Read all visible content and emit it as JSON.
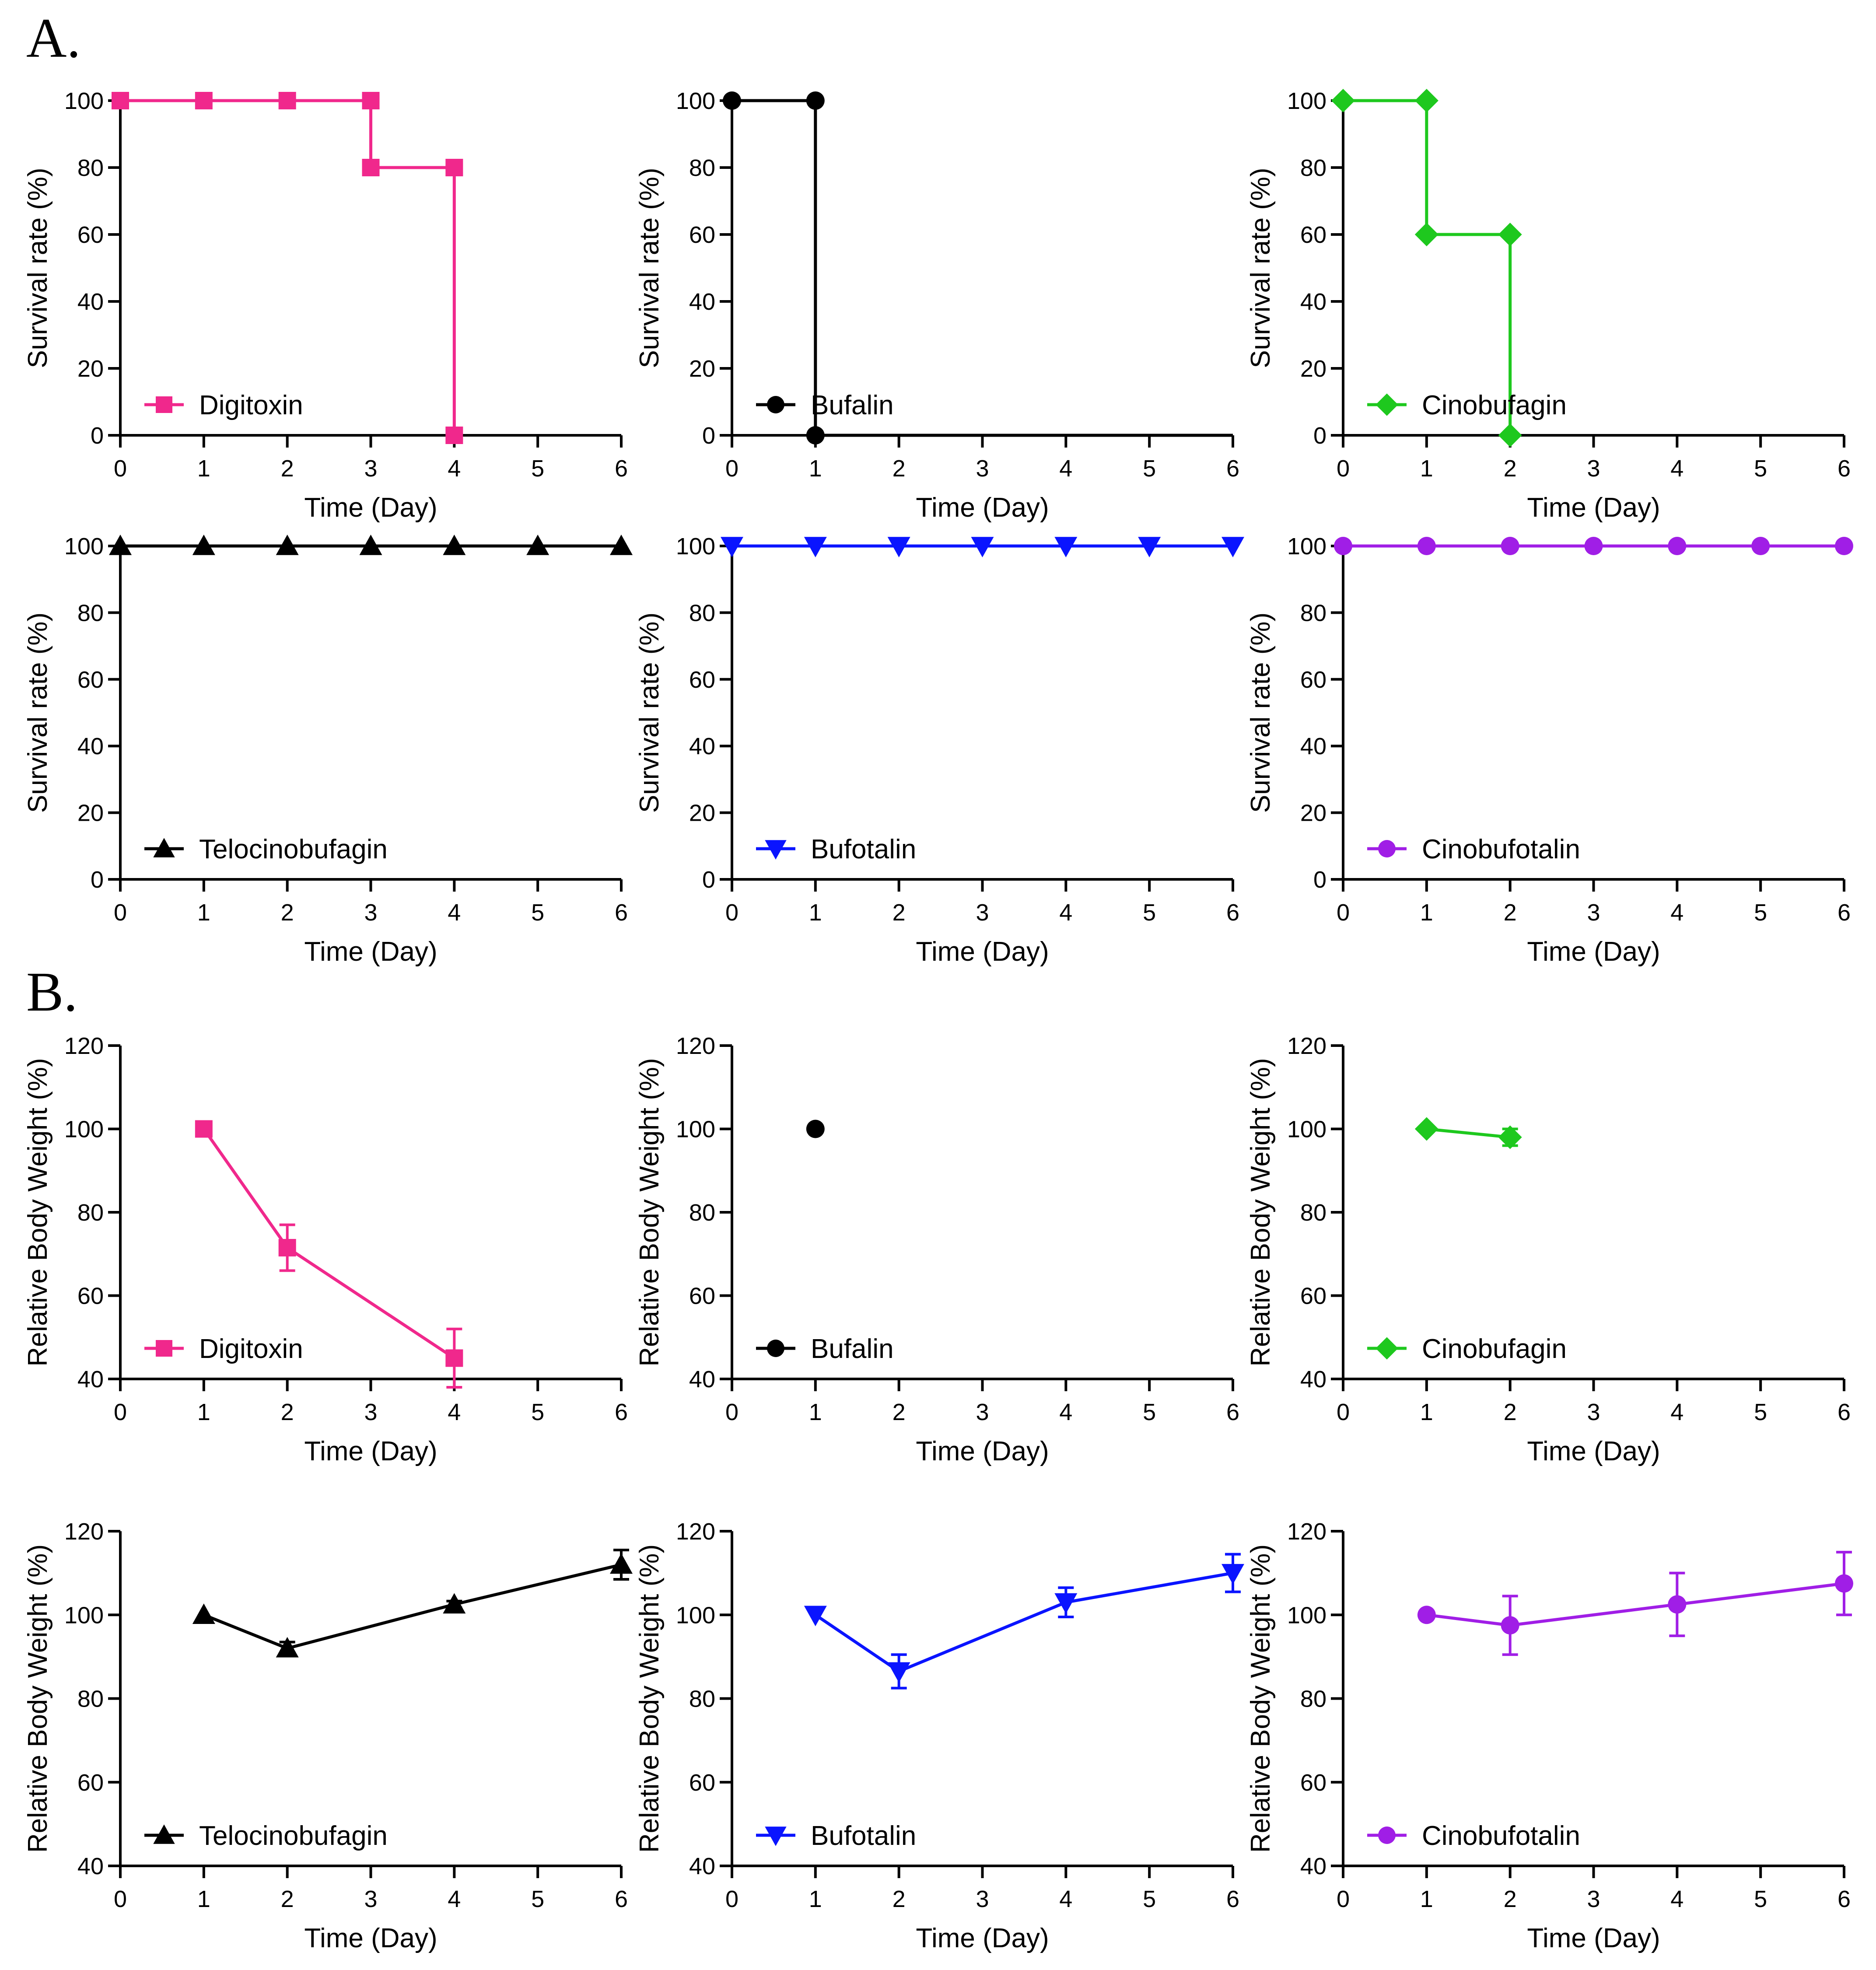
{
  "figure": {
    "panel_labels": [
      "A.",
      "B."
    ]
  },
  "colors": {
    "Digitoxin": "#f0288c",
    "Bufalin": "#000000",
    "Cinobufagin": "#1ec81e",
    "Telocinobufagin": "#000000",
    "Bufotalin": "#0a14ff",
    "Cinobufotalin": "#a01ee6"
  },
  "chart_data": [
    {
      "type": "line",
      "panel": "A",
      "name": "Digitoxin",
      "marker": "square",
      "step": true,
      "xlabel": "Time (Day)",
      "ylabel": "Survival rate (%)",
      "xlim": [
        0,
        6
      ],
      "ylim": [
        0,
        100
      ],
      "xticks": [
        0,
        1,
        2,
        3,
        4,
        5,
        6
      ],
      "yticks": [
        0,
        20,
        40,
        60,
        80,
        100
      ],
      "xticklabels": [
        "0",
        "1",
        "2",
        "3",
        "4",
        "5",
        "6"
      ],
      "yticklabels": [
        "0",
        "20",
        "40",
        "60",
        "80",
        "100"
      ],
      "x": [
        0,
        1,
        2,
        3,
        3,
        4,
        4
      ],
      "y": [
        100,
        100,
        100,
        100,
        80,
        80,
        0
      ]
    },
    {
      "type": "line",
      "panel": "A",
      "name": "Bufalin",
      "marker": "circle",
      "step": true,
      "xlabel": "Time (Day)",
      "ylabel": "Survival rate (%)",
      "xlim": [
        0,
        6
      ],
      "ylim": [
        0,
        100
      ],
      "xticks": [
        0,
        1,
        2,
        3,
        4,
        5,
        6
      ],
      "yticks": [
        0,
        20,
        40,
        60,
        80,
        100
      ],
      "xticklabels": [
        "0",
        "1",
        "2",
        "3",
        "4",
        "5",
        "6"
      ],
      "yticklabels": [
        "0",
        "20",
        "40",
        "60",
        "80",
        "100"
      ],
      "x": [
        0,
        1,
        1
      ],
      "y": [
        100,
        100,
        0
      ],
      "extend_to": 6
    },
    {
      "type": "line",
      "panel": "A",
      "name": "Cinobufagin",
      "marker": "diamond",
      "step": true,
      "xlabel": "Time (Day)",
      "ylabel": "Survival rate (%)",
      "xlim": [
        0,
        6
      ],
      "ylim": [
        0,
        100
      ],
      "xticks": [
        0,
        1,
        2,
        3,
        4,
        5,
        6
      ],
      "yticks": [
        0,
        20,
        40,
        60,
        80,
        100
      ],
      "xticklabels": [
        "0",
        "1",
        "2",
        "3",
        "4",
        "5",
        "6"
      ],
      "yticklabels": [
        "0",
        "20",
        "40",
        "60",
        "80",
        "100"
      ],
      "x": [
        0,
        1,
        1,
        2,
        2
      ],
      "y": [
        100,
        100,
        60,
        60,
        0
      ]
    },
    {
      "type": "line",
      "panel": "A",
      "name": "Telocinobufagin",
      "marker": "triangle-up",
      "step": true,
      "xlabel": "Time (Day)",
      "ylabel": "Survival rate (%)",
      "xlim": [
        0,
        6
      ],
      "ylim": [
        0,
        100
      ],
      "xticks": [
        0,
        1,
        2,
        3,
        4,
        5,
        6
      ],
      "yticks": [
        0,
        20,
        40,
        60,
        80,
        100
      ],
      "xticklabels": [
        "0",
        "1",
        "2",
        "3",
        "4",
        "5",
        "6"
      ],
      "yticklabels": [
        "0",
        "20",
        "40",
        "60",
        "80",
        "100"
      ],
      "x": [
        0,
        1,
        2,
        3,
        4,
        5,
        6
      ],
      "y": [
        100,
        100,
        100,
        100,
        100,
        100,
        100
      ]
    },
    {
      "type": "line",
      "panel": "A",
      "name": "Bufotalin",
      "marker": "triangle-down",
      "step": true,
      "xlabel": "Time (Day)",
      "ylabel": "Survival rate (%)",
      "xlim": [
        0,
        6
      ],
      "ylim": [
        0,
        100
      ],
      "xticks": [
        0,
        1,
        2,
        3,
        4,
        5,
        6
      ],
      "yticks": [
        0,
        20,
        40,
        60,
        80,
        100
      ],
      "xticklabels": [
        "0",
        "1",
        "2",
        "3",
        "4",
        "5",
        "6"
      ],
      "yticklabels": [
        "0",
        "20",
        "40",
        "60",
        "80",
        "100"
      ],
      "x": [
        0,
        1,
        2,
        3,
        4,
        5,
        6
      ],
      "y": [
        100,
        100,
        100,
        100,
        100,
        100,
        100
      ]
    },
    {
      "type": "line",
      "panel": "A",
      "name": "Cinobufotalin",
      "marker": "circle",
      "step": true,
      "xlabel": "Time (Day)",
      "ylabel": "Survival rate (%)",
      "xlim": [
        0,
        6
      ],
      "ylim": [
        0,
        100
      ],
      "xticks": [
        0,
        1,
        2,
        3,
        4,
        5,
        6
      ],
      "yticks": [
        0,
        20,
        40,
        60,
        80,
        100
      ],
      "xticklabels": [
        "0",
        "1",
        "2",
        "3",
        "4",
        "5",
        "6"
      ],
      "yticklabels": [
        "0",
        "20",
        "40",
        "60",
        "80",
        "100"
      ],
      "x": [
        0,
        1,
        2,
        3,
        4,
        5,
        6
      ],
      "y": [
        100,
        100,
        100,
        100,
        100,
        100,
        100
      ]
    },
    {
      "type": "line",
      "panel": "B",
      "name": "Digitoxin",
      "marker": "square",
      "step": false,
      "xlabel": "Time (Day)",
      "ylabel": "Relative Body Weight (%)",
      "xlim": [
        0,
        6
      ],
      "ylim": [
        40,
        120
      ],
      "xticks": [
        0,
        1,
        2,
        3,
        4,
        5,
        6
      ],
      "yticks": [
        40,
        60,
        80,
        100,
        120
      ],
      "xticklabels": [
        "0",
        "1",
        "2",
        "3",
        "4",
        "5",
        "6"
      ],
      "yticklabels": [
        "40",
        "60",
        "80",
        "100",
        "120"
      ],
      "x": [
        1,
        2,
        4
      ],
      "y": [
        100,
        71.5,
        45
      ],
      "err": [
        0,
        5.5,
        7
      ]
    },
    {
      "type": "line",
      "panel": "B",
      "name": "Bufalin",
      "marker": "circle",
      "step": false,
      "xlabel": "Time (Day)",
      "ylabel": "Relative Body Weight (%)",
      "xlim": [
        0,
        6
      ],
      "ylim": [
        40,
        120
      ],
      "xticks": [
        0,
        1,
        2,
        3,
        4,
        5,
        6
      ],
      "yticks": [
        40,
        60,
        80,
        100,
        120
      ],
      "xticklabels": [
        "0",
        "1",
        "2",
        "3",
        "4",
        "5",
        "6"
      ],
      "yticklabels": [
        "40",
        "60",
        "80",
        "100",
        "120"
      ],
      "x": [
        1
      ],
      "y": [
        100
      ],
      "err": [
        0
      ]
    },
    {
      "type": "line",
      "panel": "B",
      "name": "Cinobufagin",
      "marker": "diamond",
      "step": false,
      "xlabel": "Time (Day)",
      "ylabel": "Relative Body Weight (%)",
      "xlim": [
        0,
        6
      ],
      "ylim": [
        40,
        120
      ],
      "xticks": [
        0,
        1,
        2,
        3,
        4,
        5,
        6
      ],
      "yticks": [
        40,
        60,
        80,
        100,
        120
      ],
      "xticklabels": [
        "0",
        "1",
        "2",
        "3",
        "4",
        "5",
        "6"
      ],
      "yticklabels": [
        "40",
        "60",
        "80",
        "100",
        "120"
      ],
      "x": [
        1,
        2
      ],
      "y": [
        100,
        98
      ],
      "err": [
        0,
        2
      ]
    },
    {
      "type": "line",
      "panel": "B",
      "name": "Telocinobufagin",
      "marker": "triangle-up",
      "step": false,
      "xlabel": "Time (Day)",
      "ylabel": "Relative Body Weight (%)",
      "xlim": [
        0,
        6
      ],
      "ylim": [
        40,
        120
      ],
      "xticks": [
        0,
        1,
        2,
        3,
        4,
        5,
        6
      ],
      "yticks": [
        40,
        60,
        80,
        100,
        120
      ],
      "xticklabels": [
        "0",
        "1",
        "2",
        "3",
        "4",
        "5",
        "6"
      ],
      "yticklabels": [
        "40",
        "60",
        "80",
        "100",
        "120"
      ],
      "x": [
        1,
        2,
        4,
        6
      ],
      "y": [
        100,
        92,
        102.5,
        112
      ],
      "err": [
        0,
        1.5,
        0.8,
        3.5
      ]
    },
    {
      "type": "line",
      "panel": "B",
      "name": "Bufotalin",
      "marker": "triangle-down",
      "step": false,
      "xlabel": "Time (Day)",
      "ylabel": "Relative Body Weight (%)",
      "xlim": [
        0,
        6
      ],
      "ylim": [
        40,
        120
      ],
      "xticks": [
        0,
        1,
        2,
        3,
        4,
        5,
        6
      ],
      "yticks": [
        40,
        60,
        80,
        100,
        120
      ],
      "xticklabels": [
        "0",
        "1",
        "2",
        "3",
        "4",
        "5",
        "6"
      ],
      "yticklabels": [
        "40",
        "60",
        "80",
        "100",
        "120"
      ],
      "x": [
        1,
        2,
        4,
        6
      ],
      "y": [
        100,
        86.5,
        103,
        110
      ],
      "err": [
        0,
        4,
        3.5,
        4.5
      ]
    },
    {
      "type": "line",
      "panel": "B",
      "name": "Cinobufotalin",
      "marker": "circle",
      "step": false,
      "xlabel": "Time (Day)",
      "ylabel": "Relative Body Weight (%)",
      "xlim": [
        0,
        6
      ],
      "ylim": [
        40,
        120
      ],
      "xticks": [
        0,
        1,
        2,
        3,
        4,
        5,
        6
      ],
      "yticks": [
        40,
        60,
        80,
        100,
        120
      ],
      "xticklabels": [
        "0",
        "1",
        "2",
        "3",
        "4",
        "5",
        "6"
      ],
      "yticklabels": [
        "40",
        "60",
        "80",
        "100",
        "120"
      ],
      "x": [
        1,
        2,
        4,
        6
      ],
      "y": [
        100,
        97.5,
        102.5,
        107.5
      ],
      "err": [
        0,
        7,
        7.5,
        7.5
      ]
    }
  ]
}
